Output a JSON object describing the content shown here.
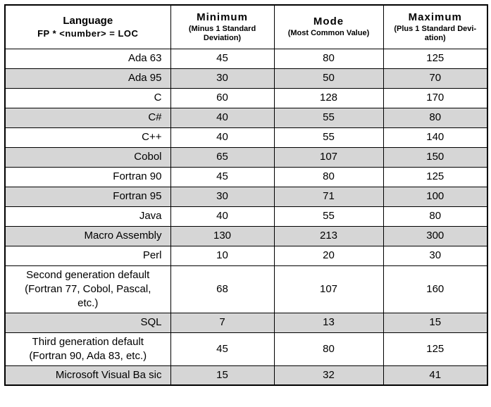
{
  "table": {
    "header": {
      "language_title": "Language",
      "language_subtitle": "FP * <number> = LOC",
      "columns": [
        {
          "title": "Minimum",
          "subtitle": "(Minus 1 Standard\nDeviation)"
        },
        {
          "title": "Mode",
          "subtitle": "(Most Common Value)"
        },
        {
          "title": "Maximum",
          "subtitle": "(Plus 1 Standard Devi-\nation)"
        }
      ]
    },
    "rows": [
      {
        "language": "Ada 63",
        "min": "45",
        "mode": "80",
        "max": "125",
        "shaded": false
      },
      {
        "language": "Ada 95",
        "min": "30",
        "mode": "50",
        "max": "70",
        "shaded": true
      },
      {
        "language": "C",
        "min": "60",
        "mode": "128",
        "max": "170",
        "shaded": false
      },
      {
        "language": "C#",
        "min": "40",
        "mode": "55",
        "max": "80",
        "shaded": true
      },
      {
        "language": "C++",
        "min": "40",
        "mode": "55",
        "max": "140",
        "shaded": false
      },
      {
        "language": "Cobol",
        "min": "65",
        "mode": "107",
        "max": "150",
        "shaded": true
      },
      {
        "language": "Fortran 90",
        "min": "45",
        "mode": "80",
        "max": "125",
        "shaded": false
      },
      {
        "language": "Fortran 95",
        "min": "30",
        "mode": "71",
        "max": "100",
        "shaded": true
      },
      {
        "language": "Java",
        "min": "40",
        "mode": "55",
        "max": "80",
        "shaded": false
      },
      {
        "language": "Macro Assembly",
        "min": "130",
        "mode": "213",
        "max": "300",
        "shaded": true
      },
      {
        "language": "Perl",
        "min": "10",
        "mode": "20",
        "max": "30",
        "shaded": false
      },
      {
        "language": "Second generation default\n(Fortran 77, Cobol, Pascal,\netc.)",
        "min": "68",
        "mode": "107",
        "max": "160",
        "shaded": false
      },
      {
        "language": "SQL",
        "min": "7",
        "mode": "13",
        "max": "15",
        "shaded": true
      },
      {
        "language": "Third generation default\n(Fortran 90, Ada 83, etc.)",
        "min": "45",
        "mode": "80",
        "max": "125",
        "shaded": false
      },
      {
        "language": "Microsoft Visual Ba sic",
        "min": "15",
        "mode": "32",
        "max": "41",
        "shaded": true
      }
    ],
    "colors": {
      "shaded_row": "#d6d6d6",
      "border": "#000000"
    }
  }
}
